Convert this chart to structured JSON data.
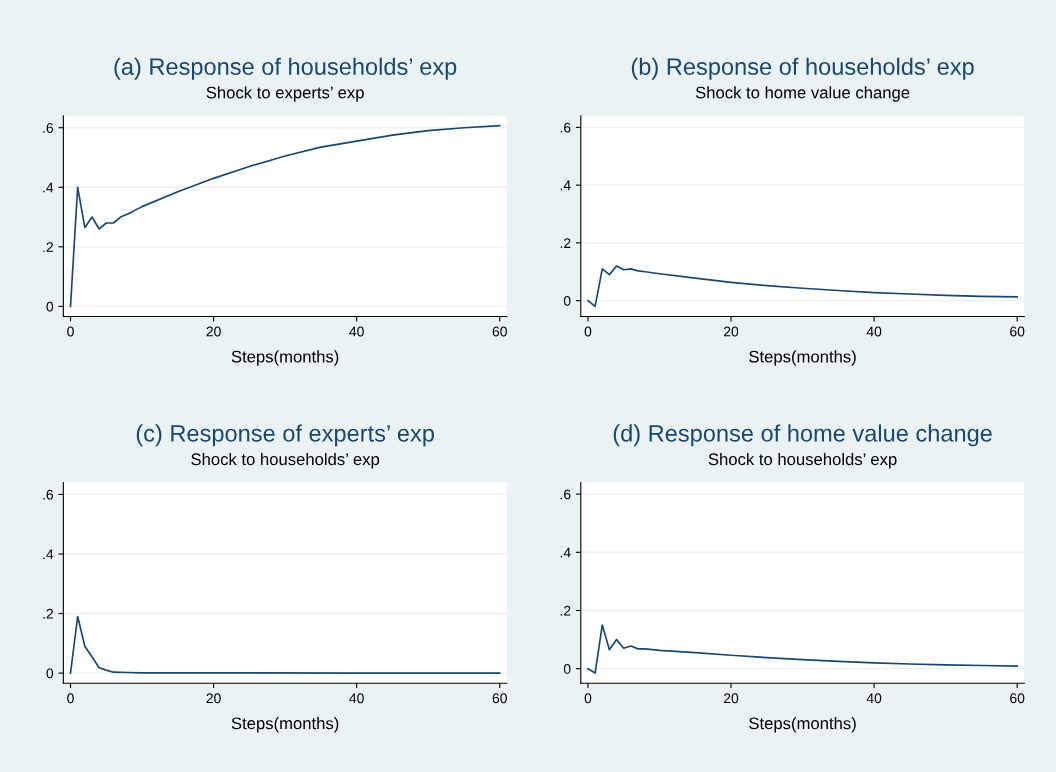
{
  "chart_data": [
    {
      "type": "line",
      "title": "(a) Response of households’ exp",
      "subtitle": "Shock to experts’ exp",
      "xlabel": "Steps(months)",
      "x": [
        0,
        1,
        2,
        3,
        4,
        5,
        6,
        7,
        8,
        10,
        15,
        20,
        25,
        30,
        35,
        40,
        45,
        50,
        55,
        60
      ],
      "series": [
        {
          "color": "#1a476f",
          "values": [
            0,
            0.4,
            0.265,
            0.3,
            0.26,
            0.28,
            0.28,
            0.3,
            0.31,
            0.335,
            0.385,
            0.43,
            0.47,
            0.505,
            0.535,
            0.555,
            0.575,
            0.59,
            0.6,
            0.607
          ]
        }
      ],
      "xlim": [
        -1,
        61
      ],
      "ylim": [
        -0.034,
        0.64
      ],
      "xticks": [
        0,
        20,
        40,
        60
      ],
      "yticks": [
        0,
        {
          "value": 0.2,
          "label": ".2"
        },
        {
          "value": 0.4,
          "label": ".4"
        },
        {
          "value": 0.6,
          "label": ".6"
        }
      ],
      "grid": "y",
      "marker": "none",
      "line_style": "solid"
    },
    {
      "type": "line",
      "title": "(b) Response of households’ exp",
      "subtitle": "Shock to home value change",
      "xlabel": "Steps(months)",
      "x": [
        0,
        1,
        2,
        3,
        4,
        5,
        6,
        7,
        8,
        10,
        15,
        20,
        25,
        30,
        35,
        40,
        45,
        50,
        55,
        60
      ],
      "series": [
        {
          "color": "#1a476f",
          "values": [
            0,
            -0.02,
            0.11,
            0.09,
            0.12,
            0.107,
            0.11,
            0.103,
            0.1,
            0.093,
            0.078,
            0.063,
            0.052,
            0.043,
            0.035,
            0.028,
            0.023,
            0.018,
            0.015,
            0.013
          ]
        }
      ],
      "xlim": [
        -1,
        61
      ],
      "ylim": [
        -0.055,
        0.64
      ],
      "xticks": [
        0,
        20,
        40,
        60
      ],
      "yticks": [
        0,
        {
          "value": 0.2,
          "label": ".2"
        },
        {
          "value": 0.4,
          "label": ".4"
        },
        {
          "value": 0.6,
          "label": ".6"
        }
      ],
      "grid": "y",
      "marker": "none",
      "line_style": "solid"
    },
    {
      "type": "line",
      "title": "(c) Response of experts’ exp",
      "subtitle": "Shock to households’ exp",
      "xlabel": "Steps(months)",
      "x": [
        0,
        1,
        2,
        3,
        4,
        5,
        6,
        8,
        10,
        20,
        40,
        60
      ],
      "series": [
        {
          "color": "#1a476f",
          "values": [
            0,
            0.19,
            0.09,
            0.055,
            0.018,
            0.01,
            0.003,
            0.002,
            0.001,
            0.001,
            0,
            0
          ]
        }
      ],
      "xlim": [
        -1,
        61
      ],
      "ylim": [
        -0.034,
        0.64
      ],
      "xticks": [
        0,
        20,
        40,
        60
      ],
      "yticks": [
        0,
        {
          "value": 0.2,
          "label": ".2"
        },
        {
          "value": 0.4,
          "label": ".4"
        },
        {
          "value": 0.6,
          "label": ".6"
        }
      ],
      "grid": "y",
      "marker": "none",
      "line_style": "solid"
    },
    {
      "type": "line",
      "title": "(d) Response of home value change",
      "subtitle": "Shock to households’ exp",
      "xlabel": "Steps(months)",
      "x": [
        0,
        1,
        2,
        3,
        4,
        5,
        6,
        7,
        8,
        10,
        15,
        20,
        25,
        30,
        35,
        40,
        45,
        50,
        55,
        60
      ],
      "series": [
        {
          "color": "#1a476f",
          "values": [
            0,
            -0.015,
            0.15,
            0.065,
            0.1,
            0.07,
            0.078,
            0.068,
            0.068,
            0.063,
            0.055,
            0.046,
            0.038,
            0.031,
            0.025,
            0.02,
            0.016,
            0.013,
            0.011,
            0.009
          ]
        }
      ],
      "xlim": [
        -1,
        61
      ],
      "ylim": [
        -0.05,
        0.64
      ],
      "xticks": [
        0,
        20,
        40,
        60
      ],
      "yticks": [
        0,
        {
          "value": 0.2,
          "label": ".2"
        },
        {
          "value": 0.4,
          "label": ".4"
        },
        {
          "value": 0.6,
          "label": ".6"
        }
      ],
      "grid": "y",
      "marker": "none",
      "line_style": "solid"
    }
  ]
}
